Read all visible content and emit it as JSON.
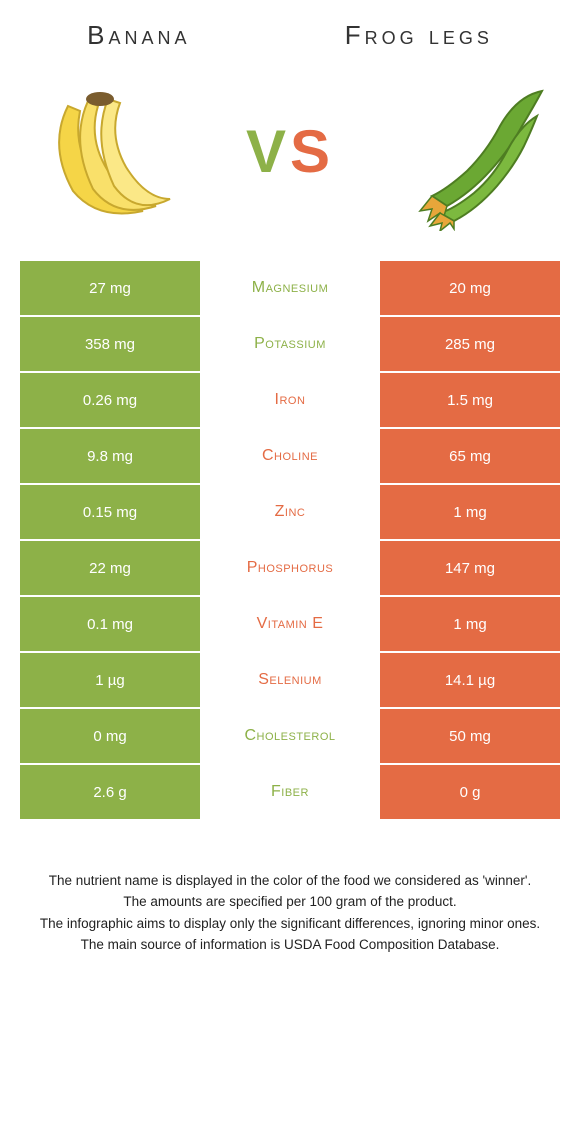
{
  "colors": {
    "left_bg": "#8db148",
    "right_bg": "#e46b44",
    "mid_bg": "#ffffff",
    "left_text": "#ffffff",
    "right_text": "#ffffff",
    "green": "#8db148",
    "orange": "#e46b44"
  },
  "header": {
    "left_title": "Banana",
    "right_title": "Frog legs"
  },
  "vs": {
    "v": "V",
    "s": "S"
  },
  "rows": [
    {
      "left": "27 mg",
      "mid": "Magnesium",
      "right": "20 mg",
      "winner": "left"
    },
    {
      "left": "358 mg",
      "mid": "Potassium",
      "right": "285 mg",
      "winner": "left"
    },
    {
      "left": "0.26 mg",
      "mid": "Iron",
      "right": "1.5 mg",
      "winner": "right"
    },
    {
      "left": "9.8 mg",
      "mid": "Choline",
      "right": "65 mg",
      "winner": "right"
    },
    {
      "left": "0.15 mg",
      "mid": "Zinc",
      "right": "1 mg",
      "winner": "right"
    },
    {
      "left": "22 mg",
      "mid": "Phosphorus",
      "right": "147 mg",
      "winner": "right"
    },
    {
      "left": "0.1 mg",
      "mid": "Vitamin E",
      "right": "1 mg",
      "winner": "right"
    },
    {
      "left": "1 µg",
      "mid": "Selenium",
      "right": "14.1 µg",
      "winner": "right"
    },
    {
      "left": "0 mg",
      "mid": "Cholesterol",
      "right": "50 mg",
      "winner": "left"
    },
    {
      "left": "2.6 g",
      "mid": "Fiber",
      "right": "0 g",
      "winner": "left"
    }
  ],
  "footer": {
    "line1": "The nutrient name is displayed in the color of the food we considered as 'winner'.",
    "line2": "The amounts are specified per 100 gram of the product.",
    "line3": "The infographic aims to display only the significant differences, ignoring minor ones.",
    "line4": "The main source of information is USDA Food Composition Database."
  }
}
